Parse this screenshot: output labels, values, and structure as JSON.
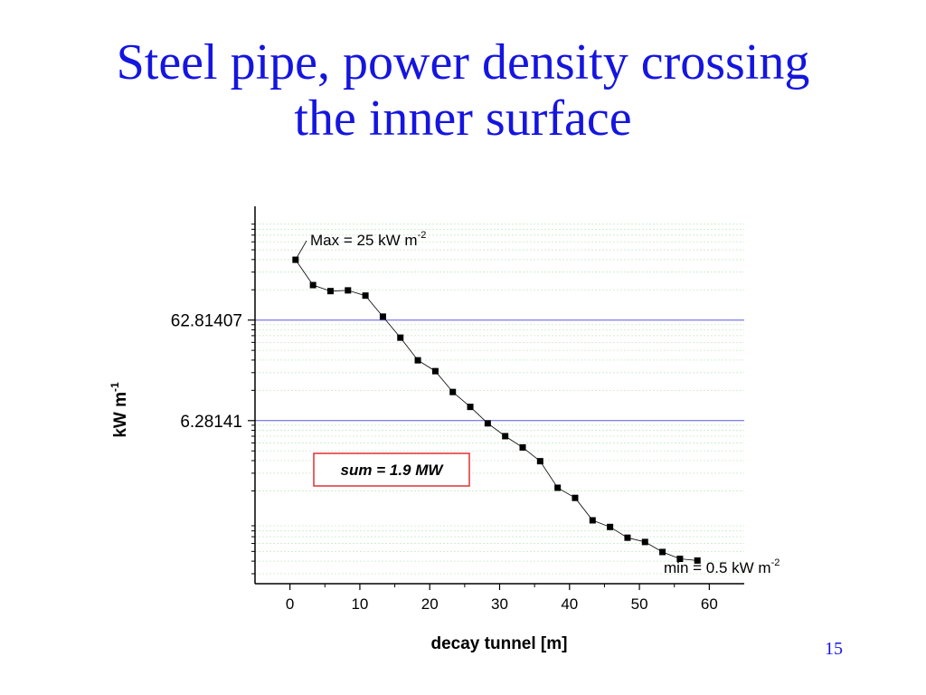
{
  "slide": {
    "title_line1": "Steel pipe, power density crossing",
    "title_line2": "the inner surface",
    "page_number": "15"
  },
  "colors": {
    "title": "#1515e0",
    "reference_line": "#5a5ae6",
    "grid": "#c6ecc6",
    "marker": "#000000",
    "sum_box_border": "#e03030"
  },
  "chart_data": {
    "type": "scatter",
    "xlabel": "decay tunnel [m]",
    "ylabel": "kW m",
    "ylabel_superscript": "-1",
    "xlim": [
      -5,
      65
    ],
    "ylim": [
      0.15,
      850
    ],
    "yscale": "log",
    "x_ticks": [
      0,
      10,
      20,
      30,
      40,
      50,
      60
    ],
    "y_ticks": [
      {
        "value": 62.81407,
        "label": "62.81407"
      },
      {
        "value": 6.28141,
        "label": "6.28141"
      }
    ],
    "grid": true,
    "series": [
      {
        "x": [
          0.8,
          3.3,
          5.8,
          8.3,
          10.8,
          13.3,
          15.8,
          18.3,
          20.8,
          23.3,
          25.8,
          28.3,
          30.8,
          33.3,
          35.8,
          38.3,
          40.8,
          43.3,
          45.8,
          48.3,
          50.8,
          53.3,
          55.8,
          58.3
        ],
        "y": [
          250,
          140,
          122,
          124,
          110,
          68,
          42,
          25,
          19.5,
          12.1,
          8.6,
          5.9,
          4.4,
          3.4,
          2.48,
          1.35,
          1.07,
          0.64,
          0.55,
          0.43,
          0.39,
          0.31,
          0.265,
          0.255
        ]
      }
    ],
    "annotations": {
      "max_label": "Max = 25 kW m",
      "max_superscript": "-2",
      "min_label": "min = 0.5 kW m",
      "min_superscript": "-2",
      "sum_label": "sum = 1.9 MW"
    }
  }
}
